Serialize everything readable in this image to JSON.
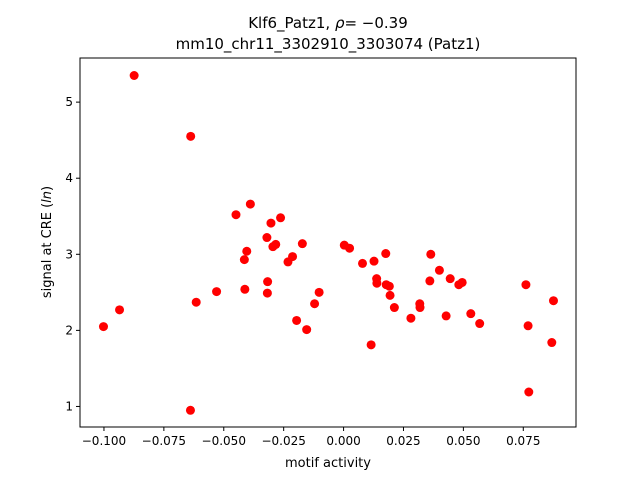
{
  "chart_data": {
    "type": "scatter",
    "title": "Klf6_Patz1, ρ = −0.39",
    "title_parts": {
      "prefix": "Klf6_Patz1, ",
      "rho_symbol": "ρ",
      "rho_value": "= −0.39"
    },
    "subtitle": "mm10_chr11_3302910_3303074 (Patz1)",
    "xlabel": "motif activity",
    "ylabel": "signal at CRE (ln)",
    "ylabel_parts": {
      "before": "signal at CRE (",
      "italic": "ln",
      "after": ")"
    },
    "xlim": [
      -0.11,
      0.097
    ],
    "ylim": [
      0.73,
      5.58
    ],
    "xticks": [
      -0.1,
      -0.075,
      -0.05,
      -0.025,
      0.0,
      0.025,
      0.05,
      0.075
    ],
    "xtick_labels": [
      "−0.100",
      "−0.075",
      "−0.050",
      "−0.025",
      "0.000",
      "0.025",
      "0.050",
      "0.075"
    ],
    "yticks": [
      1,
      2,
      3,
      4,
      5
    ],
    "ytick_labels": [
      "1",
      "2",
      "3",
      "4",
      "5"
    ],
    "grid": false,
    "marker_color": "#ff0000",
    "points": [
      {
        "x": -0.1002,
        "y": 2.05
      },
      {
        "x": -0.0935,
        "y": 2.27
      },
      {
        "x": -0.0874,
        "y": 5.35
      },
      {
        "x": -0.0638,
        "y": 4.55
      },
      {
        "x": -0.0639,
        "y": 0.95
      },
      {
        "x": -0.0615,
        "y": 2.37
      },
      {
        "x": -0.053,
        "y": 2.51
      },
      {
        "x": -0.0449,
        "y": 3.52
      },
      {
        "x": -0.0414,
        "y": 2.93
      },
      {
        "x": -0.0412,
        "y": 2.54
      },
      {
        "x": -0.0404,
        "y": 3.04
      },
      {
        "x": -0.0389,
        "y": 3.66
      },
      {
        "x": -0.032,
        "y": 3.22
      },
      {
        "x": -0.0317,
        "y": 2.64
      },
      {
        "x": -0.0318,
        "y": 2.49
      },
      {
        "x": -0.0303,
        "y": 3.41
      },
      {
        "x": -0.0295,
        "y": 3.1
      },
      {
        "x": -0.0283,
        "y": 3.13
      },
      {
        "x": -0.0263,
        "y": 3.48
      },
      {
        "x": -0.0232,
        "y": 2.9
      },
      {
        "x": -0.0213,
        "y": 2.97
      },
      {
        "x": -0.0196,
        "y": 2.13
      },
      {
        "x": -0.0172,
        "y": 3.14
      },
      {
        "x": -0.0154,
        "y": 2.01
      },
      {
        "x": -0.0121,
        "y": 2.35
      },
      {
        "x": -0.0102,
        "y": 2.5
      },
      {
        "x": 0.0003,
        "y": 3.12
      },
      {
        "x": 0.0025,
        "y": 3.08
      },
      {
        "x": 0.0079,
        "y": 2.88
      },
      {
        "x": 0.0115,
        "y": 1.81
      },
      {
        "x": 0.0127,
        "y": 2.91
      },
      {
        "x": 0.0138,
        "y": 2.68
      },
      {
        "x": 0.0139,
        "y": 2.62
      },
      {
        "x": 0.0176,
        "y": 3.01
      },
      {
        "x": 0.0178,
        "y": 2.6
      },
      {
        "x": 0.0191,
        "y": 2.58
      },
      {
        "x": 0.0194,
        "y": 2.46
      },
      {
        "x": 0.0212,
        "y": 2.3
      },
      {
        "x": 0.0281,
        "y": 2.16
      },
      {
        "x": 0.0318,
        "y": 2.35
      },
      {
        "x": 0.0319,
        "y": 2.3
      },
      {
        "x": 0.036,
        "y": 2.65
      },
      {
        "x": 0.0364,
        "y": 3.0
      },
      {
        "x": 0.04,
        "y": 2.79
      },
      {
        "x": 0.0428,
        "y": 2.19
      },
      {
        "x": 0.0445,
        "y": 2.68
      },
      {
        "x": 0.0481,
        "y": 2.6
      },
      {
        "x": 0.0495,
        "y": 2.63
      },
      {
        "x": 0.0531,
        "y": 2.22
      },
      {
        "x": 0.0568,
        "y": 2.09
      },
      {
        "x": 0.0761,
        "y": 2.6
      },
      {
        "x": 0.077,
        "y": 2.06
      },
      {
        "x": 0.0773,
        "y": 1.19
      },
      {
        "x": 0.0869,
        "y": 1.84
      },
      {
        "x": 0.0876,
        "y": 2.39
      }
    ]
  }
}
